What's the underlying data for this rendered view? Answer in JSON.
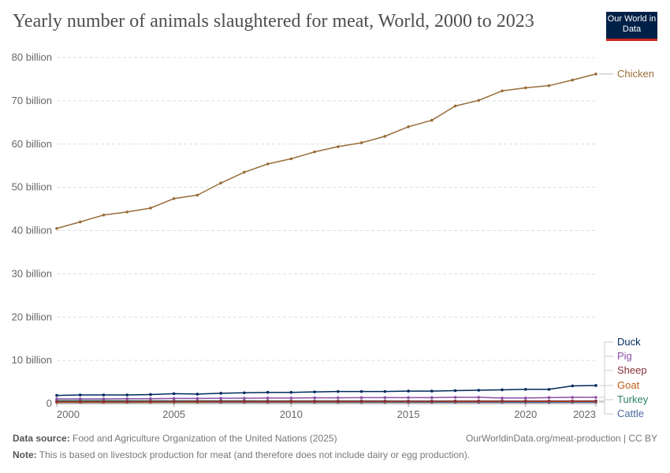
{
  "header": {
    "title": "Yearly number of animals slaughtered for meat, World, 2000 to 2023",
    "logo": "Our World in Data"
  },
  "footer": {
    "source_label": "Data source:",
    "source": "Food and Agriculture Organization of the United Nations (2025)",
    "url": "OurWorldinData.org/meat-production | CC BY",
    "note_label": "Note:",
    "note": "This is based on livestock production for meat (and therefore does not include dairy or egg production)."
  },
  "chart_data": {
    "type": "line",
    "title": "Yearly number of animals slaughtered for meat, World, 2000 to 2023",
    "xlim": [
      2000,
      2023
    ],
    "ylim": [
      0,
      80000000000
    ],
    "grid": "horizontal dashed",
    "x_ticks": [
      2000,
      2005,
      2010,
      2015,
      2020,
      2023
    ],
    "y_ticks": [
      {
        "v": 0,
        "label": "0"
      },
      {
        "v": 10,
        "label": "10 billion"
      },
      {
        "v": 20,
        "label": "20 billion"
      },
      {
        "v": 30,
        "label": "30 billion"
      },
      {
        "v": 40,
        "label": "40 billion"
      },
      {
        "v": 50,
        "label": "50 billion"
      },
      {
        "v": 60,
        "label": "60 billion"
      },
      {
        "v": 70,
        "label": "70 billion"
      },
      {
        "v": 80,
        "label": "80 billion"
      }
    ],
    "y_unit": "billion",
    "x": [
      2000,
      2001,
      2002,
      2003,
      2004,
      2005,
      2006,
      2007,
      2008,
      2009,
      2010,
      2011,
      2012,
      2013,
      2014,
      2015,
      2016,
      2017,
      2018,
      2019,
      2020,
      2021,
      2022,
      2023
    ],
    "series": [
      {
        "name": "Chicken",
        "color": "#996d39",
        "values": [
          40.5,
          42.0,
          43.6,
          44.3,
          45.2,
          47.4,
          48.2,
          51.0,
          53.5,
          55.4,
          56.6,
          58.2,
          59.4,
          60.3,
          61.8,
          64.0,
          65.5,
          68.8,
          70.1,
          72.3,
          73.0,
          73.5,
          74.8,
          76.2
        ]
      },
      {
        "name": "Duck",
        "color": "#00295b",
        "values": [
          1.9,
          2.0,
          2.0,
          2.0,
          2.1,
          2.3,
          2.2,
          2.4,
          2.5,
          2.6,
          2.6,
          2.7,
          2.8,
          2.8,
          2.8,
          2.9,
          2.9,
          3.0,
          3.1,
          3.2,
          3.3,
          3.3,
          4.1,
          4.2
        ]
      },
      {
        "name": "Pig",
        "color": "#8c4fa6",
        "values": [
          1.1,
          1.1,
          1.1,
          1.15,
          1.15,
          1.2,
          1.2,
          1.25,
          1.25,
          1.3,
          1.3,
          1.35,
          1.35,
          1.4,
          1.4,
          1.4,
          1.4,
          1.45,
          1.45,
          1.3,
          1.3,
          1.4,
          1.45,
          1.45
        ]
      },
      {
        "name": "Sheep",
        "color": "#883039",
        "values": [
          0.5,
          0.5,
          0.5,
          0.5,
          0.52,
          0.53,
          0.54,
          0.55,
          0.55,
          0.55,
          0.56,
          0.56,
          0.56,
          0.57,
          0.57,
          0.58,
          0.58,
          0.59,
          0.6,
          0.6,
          0.6,
          0.61,
          0.62,
          0.63
        ]
      },
      {
        "name": "Goat",
        "color": "#c05917",
        "values": [
          0.33,
          0.34,
          0.35,
          0.36,
          0.37,
          0.38,
          0.39,
          0.4,
          0.41,
          0.42,
          0.42,
          0.43,
          0.44,
          0.45,
          0.45,
          0.46,
          0.47,
          0.48,
          0.48,
          0.49,
          0.5,
          0.5,
          0.51,
          0.52
        ]
      },
      {
        "name": "Turkey",
        "color": "#2c8465",
        "values": [
          0.7,
          0.7,
          0.7,
          0.68,
          0.66,
          0.66,
          0.66,
          0.66,
          0.65,
          0.64,
          0.64,
          0.63,
          0.63,
          0.63,
          0.63,
          0.62,
          0.62,
          0.62,
          0.62,
          0.62,
          0.62,
          0.6,
          0.6,
          0.6
        ]
      },
      {
        "name": "Cattle",
        "color": "#4c6a9c",
        "values": [
          0.28,
          0.28,
          0.28,
          0.28,
          0.29,
          0.29,
          0.29,
          0.29,
          0.29,
          0.29,
          0.3,
          0.3,
          0.3,
          0.3,
          0.3,
          0.3,
          0.3,
          0.3,
          0.3,
          0.3,
          0.3,
          0.3,
          0.31,
          0.31
        ]
      }
    ]
  }
}
